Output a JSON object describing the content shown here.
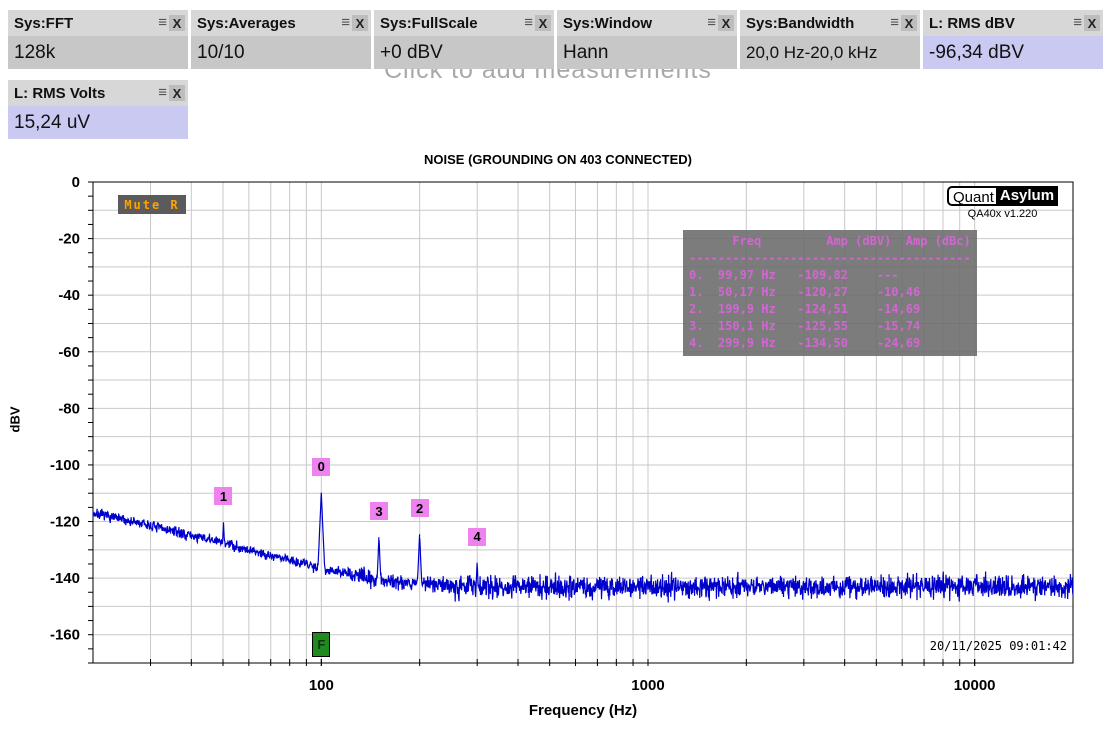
{
  "icons": {
    "menu": "≡",
    "close": "X"
  },
  "tiles": [
    {
      "label": "Sys:FFT",
      "value": "128k"
    },
    {
      "label": "Sys:Averages",
      "value": "10/10"
    },
    {
      "label": "Sys:FullScale",
      "value": "+0 dBV"
    },
    {
      "label": "Sys:Window",
      "value": "Hann"
    },
    {
      "label": "Sys:Bandwidth",
      "value": "20,0 Hz-20,0 kHz"
    },
    {
      "label": "L: RMS dBV",
      "value": "-96,34 dBV"
    }
  ],
  "tiles_row2": [
    {
      "label": "L: RMS Volts",
      "value": "15,24 uV"
    }
  ],
  "hint_text": "Click to add measurements",
  "mute_badge": "Mute R",
  "brand": {
    "part1": "Quant",
    "part2": "Asylum",
    "version": "QA40x v1.220"
  },
  "timestamp": "20/11/2025 09:01:42",
  "chart_data": {
    "type": "line",
    "title": "NOISE (GROUNDING ON 403 CONNECTED)",
    "xlabel": "Frequency (Hz)",
    "ylabel": "dBV",
    "x_scale": "log",
    "xlim": [
      20,
      20000
    ],
    "ylim": [
      -170,
      0
    ],
    "x_tick_labels": [
      100,
      1000,
      10000
    ],
    "y_tick_labels": [
      0,
      -20,
      -40,
      -60,
      -80,
      -100,
      -120,
      -140,
      -160
    ],
    "y_grid_step_db": 10,
    "y_tick_step_db": 5,
    "grid": "on",
    "trace_color": "#0000cc",
    "grid_color": "#c9c9c9",
    "noise_floor_dbv": -143,
    "baseline_points": [
      [
        20,
        -117
      ],
      [
        25,
        -119.5
      ],
      [
        30,
        -121.5
      ],
      [
        40,
        -125
      ],
      [
        50,
        -127.5
      ],
      [
        60,
        -130
      ],
      [
        70,
        -132
      ],
      [
        80,
        -133.5
      ],
      [
        90,
        -135
      ],
      [
        100,
        -136.5
      ],
      [
        120,
        -138.5
      ],
      [
        150,
        -140.5
      ],
      [
        200,
        -142
      ],
      [
        300,
        -143
      ],
      [
        20000,
        -143
      ]
    ],
    "markers": [
      {
        "label": "0",
        "freq_hz": 99.97,
        "amp_dbv": -109.82
      },
      {
        "label": "1",
        "freq_hz": 50.17,
        "amp_dbv": -120.27
      },
      {
        "label": "2",
        "freq_hz": 199.9,
        "amp_dbv": -124.51
      },
      {
        "label": "3",
        "freq_hz": 150.1,
        "amp_dbv": -125.55
      },
      {
        "label": "4",
        "freq_hz": 299.9,
        "amp_dbv": -134.5
      }
    ],
    "marker_table": {
      "headers": [
        "Freq",
        "Amp (dBV)",
        "Amp (dBc)"
      ],
      "rows": [
        [
          "0.",
          "99,97 Hz",
          "-109,82",
          "---"
        ],
        [
          "1.",
          "50,17 Hz",
          "-120,27",
          "-10,46"
        ],
        [
          "2.",
          "199,9 Hz",
          "-124,51",
          "-14,69"
        ],
        [
          "3.",
          "150,1 Hz",
          "-125,55",
          "-15,74"
        ],
        [
          "4.",
          "299,9 Hz",
          "-134,50",
          "-24,69"
        ]
      ]
    },
    "fundamental_marker": {
      "label": "F",
      "freq_hz": 100
    }
  }
}
